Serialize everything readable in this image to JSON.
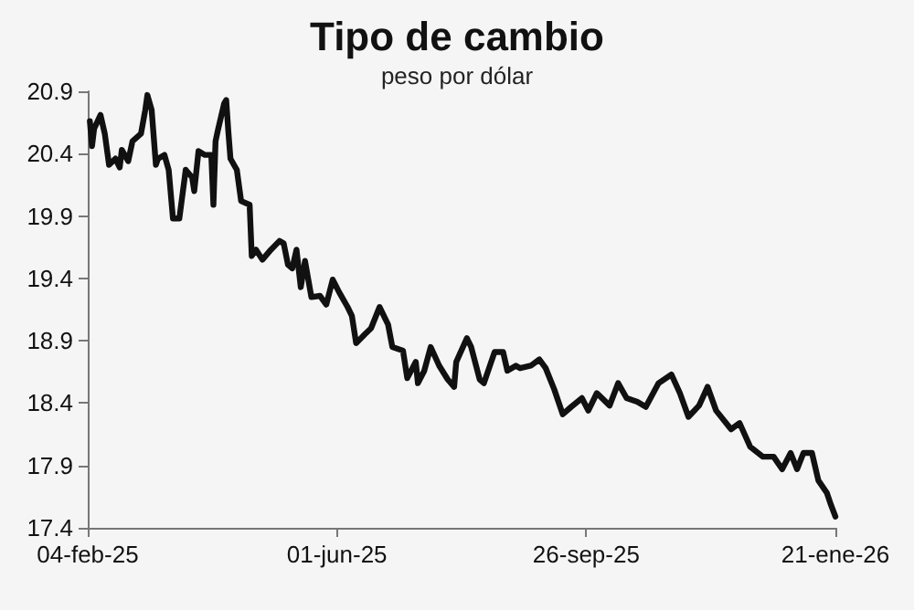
{
  "chart_data": {
    "type": "line",
    "title": "Tipo de cambio",
    "subtitle": "peso por dólar",
    "x": [
      "2025-02-05",
      "2025-02-06",
      "2025-02-07",
      "2025-02-10",
      "2025-02-12",
      "2025-02-14",
      "2025-02-17",
      "2025-02-19",
      "2025-02-20",
      "2025-02-23",
      "2025-02-25",
      "2025-03-01",
      "2025-03-03",
      "2025-03-04",
      "2025-03-06",
      "2025-03-08",
      "2025-03-09",
      "2025-03-12",
      "2025-03-14",
      "2025-03-16",
      "2025-03-19",
      "2025-03-22",
      "2025-03-25",
      "2025-03-26",
      "2025-03-28",
      "2025-03-31",
      "2025-04-03",
      "2025-04-04",
      "2025-04-05",
      "2025-04-06",
      "2025-04-09",
      "2025-04-10",
      "2025-04-11",
      "2025-04-12",
      "2025-04-15",
      "2025-04-17",
      "2025-04-21",
      "2025-04-22",
      "2025-04-24",
      "2025-04-27",
      "2025-05-01",
      "2025-05-05",
      "2025-05-07",
      "2025-05-09",
      "2025-05-11",
      "2025-05-13",
      "2025-05-15",
      "2025-05-17",
      "2025-05-20",
      "2025-05-24",
      "2025-05-27",
      "2025-05-30",
      "2025-06-02",
      "2025-06-06",
      "2025-06-08",
      "2025-06-10",
      "2025-06-14",
      "2025-06-17",
      "2025-06-21",
      "2025-06-25",
      "2025-06-27",
      "2025-07-02",
      "2025-07-04",
      "2025-07-08",
      "2025-07-09",
      "2025-07-12",
      "2025-07-15",
      "2025-07-19",
      "2025-07-23",
      "2025-07-26",
      "2025-07-27",
      "2025-08-01",
      "2025-08-03",
      "2025-08-07",
      "2025-08-09",
      "2025-08-14",
      "2025-08-18",
      "2025-08-20",
      "2025-08-24",
      "2025-08-26",
      "2025-08-31",
      "2025-09-04",
      "2025-09-07",
      "2025-09-11",
      "2025-09-15",
      "2025-09-19",
      "2025-09-24",
      "2025-09-27",
      "2025-10-01",
      "2025-10-07",
      "2025-10-11",
      "2025-10-15",
      "2025-10-20",
      "2025-10-24",
      "2025-10-30",
      "2025-11-05",
      "2025-11-09",
      "2025-11-13",
      "2025-11-18",
      "2025-11-22",
      "2025-11-26",
      "2025-12-03",
      "2025-12-07",
      "2025-12-12",
      "2025-12-18",
      "2025-12-23",
      "2025-12-27",
      "2025-12-31",
      "2026-01-03",
      "2026-01-06",
      "2026-01-10",
      "2026-01-13",
      "2026-01-17",
      "2026-01-19",
      "2026-01-21"
    ],
    "series": [
      {
        "color": "#111111",
        "values": [
          20.66,
          20.46,
          20.6,
          20.71,
          20.56,
          20.31,
          20.36,
          20.29,
          20.43,
          20.34,
          20.5,
          20.56,
          20.75,
          20.87,
          20.75,
          20.31,
          20.36,
          20.39,
          20.27,
          19.88,
          19.88,
          20.27,
          20.21,
          20.1,
          20.42,
          20.39,
          20.39,
          19.99,
          20.5,
          20.58,
          20.8,
          20.83,
          20.58,
          20.36,
          20.27,
          20.02,
          19.99,
          19.58,
          19.63,
          19.55,
          19.63,
          19.7,
          19.68,
          19.51,
          19.48,
          19.63,
          19.33,
          19.54,
          19.25,
          19.26,
          19.19,
          19.39,
          19.29,
          19.17,
          19.1,
          18.88,
          18.95,
          19.0,
          19.17,
          19.03,
          18.85,
          18.82,
          18.6,
          18.73,
          18.56,
          18.66,
          18.85,
          18.7,
          18.59,
          18.53,
          18.73,
          18.92,
          18.85,
          18.59,
          18.56,
          18.81,
          18.81,
          18.66,
          18.7,
          18.68,
          18.7,
          18.75,
          18.68,
          18.51,
          18.31,
          18.37,
          18.44,
          18.34,
          18.48,
          18.38,
          18.56,
          18.44,
          18.41,
          18.37,
          18.56,
          18.63,
          18.48,
          18.29,
          18.38,
          18.53,
          18.34,
          18.19,
          18.24,
          18.05,
          17.97,
          17.97,
          17.87,
          18.0,
          17.87,
          18.0,
          18.0,
          17.78,
          17.68,
          17.58,
          17.49
        ]
      }
    ],
    "xlim": [
      "2025-02-04",
      "2026-01-21"
    ],
    "xticks": [
      {
        "value": "2025-02-04",
        "label": "04-feb-25"
      },
      {
        "value": "2025-06-01",
        "label": "01-jun-25"
      },
      {
        "value": "2025-09-26",
        "label": "26-sep-25"
      },
      {
        "value": "2026-01-21",
        "label": "21-ene-26"
      }
    ],
    "ylim": [
      17.4,
      20.9
    ],
    "yticks": [
      17.4,
      17.9,
      18.4,
      18.9,
      19.4,
      19.9,
      20.4,
      20.9
    ],
    "grid": false,
    "marker": "none",
    "line_style": "solid"
  }
}
